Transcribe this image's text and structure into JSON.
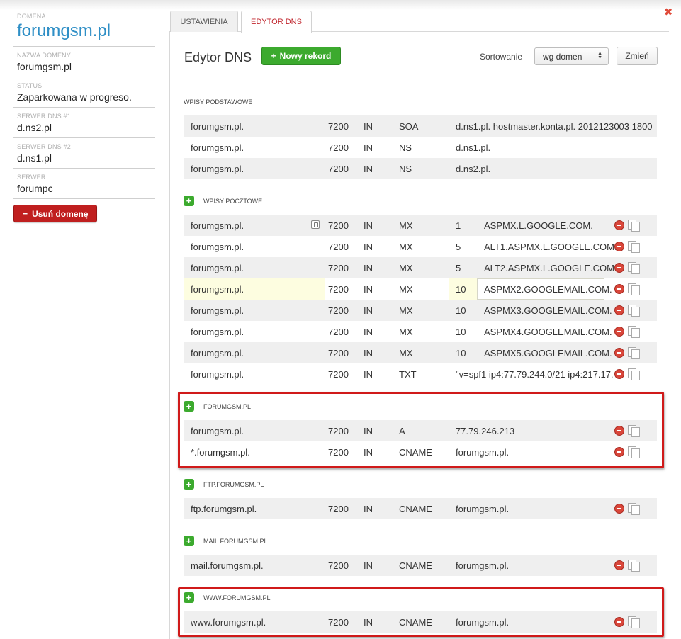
{
  "sidebar": {
    "domain_caption": "DOMENA",
    "domain": "forumgsm.pl",
    "fields": [
      {
        "label": "NAZWA DOMENY",
        "value": "forumgsm.pl"
      },
      {
        "label": "STATUS",
        "value": "Zaparkowana w progreso."
      },
      {
        "label": "SERWER DNS #1",
        "value": "d.ns2.pl"
      },
      {
        "label": "SERWER DNS #2",
        "value": "d.ns1.pl"
      },
      {
        "label": "SERWER",
        "value": "forumpc"
      }
    ],
    "delete_button": "Usuń domenę",
    "delete_icon": "minus-icon"
  },
  "tabs": [
    {
      "label": "USTAWIENIA",
      "active": false
    },
    {
      "label": "EDYTOR DNS",
      "active": true
    }
  ],
  "header": {
    "title": "Edytor DNS",
    "new_record_button": "Nowy rekord",
    "sort_label": "Sortowanie",
    "sort_value": "wg domen",
    "change_button": "Zmień"
  },
  "sections": {
    "basic": {
      "title": "WPISY PODSTAWOWE",
      "rows": [
        {
          "host": "forumgsm.pl.",
          "ttl": "7200",
          "class": "IN",
          "type": "SOA",
          "value": "d.ns1.pl. hostmaster.konta.pl. 2012123003 1800"
        },
        {
          "host": "forumgsm.pl.",
          "ttl": "7200",
          "class": "IN",
          "type": "NS",
          "value": "d.ns1.pl."
        },
        {
          "host": "forumgsm.pl.",
          "ttl": "7200",
          "class": "IN",
          "type": "NS",
          "value": "d.ns2.pl."
        }
      ]
    },
    "mail": {
      "title": "WPISY POCZTOWE",
      "rows": [
        {
          "host": "forumgsm.pl.",
          "ttl": "7200",
          "class": "IN",
          "type": "MX",
          "prio": "1",
          "value": "ASPMX.L.GOOGLE.COM."
        },
        {
          "host": "forumgsm.pl.",
          "ttl": "7200",
          "class": "IN",
          "type": "MX",
          "prio": "5",
          "value": "ALT1.ASPMX.L.GOOGLE.COM."
        },
        {
          "host": "forumgsm.pl.",
          "ttl": "7200",
          "class": "IN",
          "type": "MX",
          "prio": "5",
          "value": "ALT2.ASPMX.L.GOOGLE.COM."
        },
        {
          "host": "forumgsm.pl.",
          "ttl": "7200",
          "class": "IN",
          "type": "MX",
          "prio": "10",
          "value": "ASPMX2.GOOGLEMAIL.COM."
        },
        {
          "host": "forumgsm.pl.",
          "ttl": "7200",
          "class": "IN",
          "type": "MX",
          "prio": "10",
          "value": "ASPMX3.GOOGLEMAIL.COM."
        },
        {
          "host": "forumgsm.pl.",
          "ttl": "7200",
          "class": "IN",
          "type": "MX",
          "prio": "10",
          "value": "ASPMX4.GOOGLEMAIL.COM."
        },
        {
          "host": "forumgsm.pl.",
          "ttl": "7200",
          "class": "IN",
          "type": "MX",
          "prio": "10",
          "value": "ASPMX5.GOOGLEMAIL.COM."
        },
        {
          "host": "forumgsm.pl.",
          "ttl": "7200",
          "class": "IN",
          "type": "TXT",
          "value": "\"v=spf1 ip4:77.79.244.0/21 ip4:217.17."
        }
      ]
    },
    "root": {
      "title": "FORUMGSM.PL",
      "rows": [
        {
          "host": "forumgsm.pl.",
          "ttl": "7200",
          "class": "IN",
          "type": "A",
          "value": "77.79.246.213"
        },
        {
          "host": "*.forumgsm.pl.",
          "ttl": "7200",
          "class": "IN",
          "type": "CNAME",
          "value": "forumgsm.pl."
        }
      ]
    },
    "ftp": {
      "title": "FTP.FORUMGSM.PL",
      "rows": [
        {
          "host": "ftp.forumgsm.pl.",
          "ttl": "7200",
          "class": "IN",
          "type": "CNAME",
          "value": "forumgsm.pl."
        }
      ]
    },
    "mailsub": {
      "title": "MAIL.FORUMGSM.PL",
      "rows": [
        {
          "host": "mail.forumgsm.pl.",
          "ttl": "7200",
          "class": "IN",
          "type": "CNAME",
          "value": "forumgsm.pl."
        }
      ]
    },
    "www": {
      "title": "WWW.FORUMGSM.PL",
      "rows": [
        {
          "host": "www.forumgsm.pl.",
          "ttl": "7200",
          "class": "IN",
          "type": "CNAME",
          "value": "forumgsm.pl."
        }
      ]
    }
  },
  "colors": {
    "accent_blue": "#2f8fc6",
    "delete_red": "#c01f1f",
    "add_green": "#3caa2e",
    "highlight_red": "#d01a1a",
    "active_tab_text": "#c0242c"
  },
  "icons": {
    "close": "close-icon",
    "add": "plus-icon",
    "row_delete": "remove-circle-icon",
    "row_copy": "copy-icon",
    "lock": "lock-icon",
    "select_arrows": "updown-arrows-icon"
  }
}
